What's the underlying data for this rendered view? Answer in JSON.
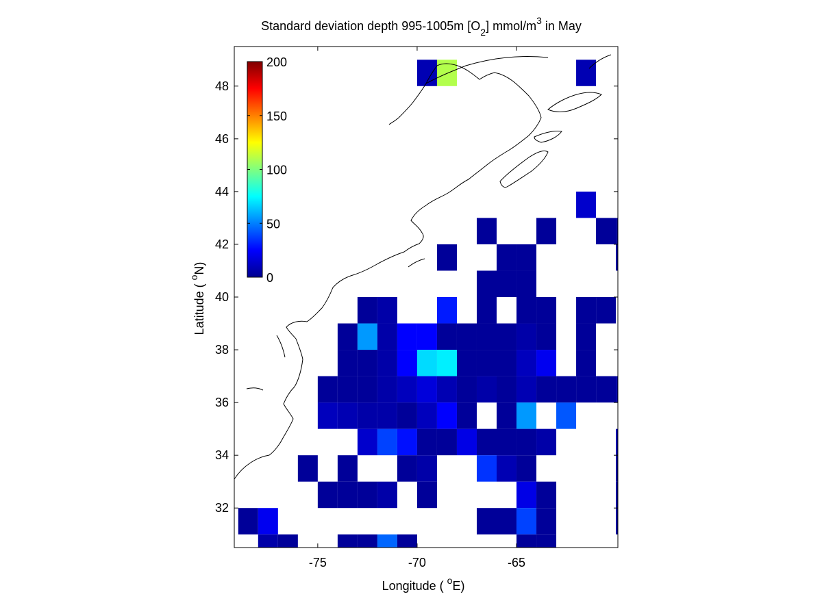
{
  "title": {
    "prefix": "Standard deviation depth 995-1005m [O",
    "sub": "2",
    "middle": "] mmol/m",
    "sup": "3",
    "suffix": " in May"
  },
  "xlabel": {
    "prefix": "Longitude ( ",
    "sup": "o",
    "suffix": "E)"
  },
  "ylabel": {
    "prefix": "Latitude ( ",
    "sup": "o",
    "suffix": "N)"
  },
  "colorbar": {
    "colormap": "jet",
    "min": 0,
    "max": 200,
    "ticks": [
      "0",
      "50",
      "100",
      "150",
      "200"
    ]
  },
  "chart_data": {
    "type": "heatmap",
    "xlim": [
      -79.2,
      -59.9
    ],
    "ylim": [
      30.5,
      49.5
    ],
    "xticks": [
      -75,
      -70,
      -65
    ],
    "xtick_labels": [
      "-75",
      "-70",
      "-65"
    ],
    "yticks": [
      32,
      34,
      36,
      38,
      40,
      42,
      44,
      46,
      48
    ],
    "ytick_labels": [
      "32",
      "34",
      "36",
      "38",
      "40",
      "42",
      "44",
      "46",
      "48"
    ],
    "cell_size_deg": 1,
    "colorbar_range": [
      0,
      200
    ],
    "cells": [
      [
        -70,
        48,
        10
      ],
      [
        -69,
        48,
        110
      ],
      [
        -62,
        48,
        10
      ],
      [
        -62,
        43,
        15
      ],
      [
        -67,
        42,
        5
      ],
      [
        -64,
        42,
        5
      ],
      [
        -61,
        42,
        5
      ],
      [
        -60,
        42,
        5
      ],
      [
        -69,
        41,
        5
      ],
      [
        -66,
        41,
        5
      ],
      [
        -65,
        41,
        5
      ],
      [
        -60,
        41,
        5
      ],
      [
        -67,
        40,
        5
      ],
      [
        -66,
        40,
        5
      ],
      [
        -65,
        40,
        5
      ],
      [
        -73,
        39,
        5
      ],
      [
        -72,
        39,
        8
      ],
      [
        -69,
        39,
        30
      ],
      [
        -67,
        39,
        5
      ],
      [
        -65,
        39,
        5
      ],
      [
        -64,
        39,
        5
      ],
      [
        -62,
        39,
        5
      ],
      [
        -61,
        39,
        5
      ],
      [
        -74,
        38,
        5
      ],
      [
        -73,
        38,
        55
      ],
      [
        -72,
        38,
        8
      ],
      [
        -71,
        38,
        25
      ],
      [
        -70,
        38,
        25
      ],
      [
        -69,
        38,
        5
      ],
      [
        -68,
        38,
        5
      ],
      [
        -67,
        38,
        5
      ],
      [
        -66,
        38,
        5
      ],
      [
        -65,
        38,
        8
      ],
      [
        -64,
        38,
        5
      ],
      [
        -62,
        38,
        5
      ],
      [
        -74,
        37,
        5
      ],
      [
        -73,
        37,
        5
      ],
      [
        -72,
        37,
        8
      ],
      [
        -71,
        37,
        25
      ],
      [
        -70,
        37,
        68
      ],
      [
        -69,
        37,
        72
      ],
      [
        -68,
        37,
        5
      ],
      [
        -67,
        37,
        5
      ],
      [
        -66,
        37,
        5
      ],
      [
        -65,
        37,
        12
      ],
      [
        -64,
        37,
        22
      ],
      [
        -62,
        37,
        5
      ],
      [
        -75,
        36,
        5
      ],
      [
        -74,
        36,
        5
      ],
      [
        -73,
        36,
        5
      ],
      [
        -72,
        36,
        8
      ],
      [
        -71,
        36,
        12
      ],
      [
        -70,
        36,
        18
      ],
      [
        -69,
        36,
        10
      ],
      [
        -68,
        36,
        5
      ],
      [
        -67,
        36,
        8
      ],
      [
        -66,
        36,
        5
      ],
      [
        -65,
        36,
        10
      ],
      [
        -64,
        36,
        5
      ],
      [
        -63,
        36,
        5
      ],
      [
        -62,
        36,
        5
      ],
      [
        -61,
        36,
        5
      ],
      [
        -60,
        36,
        8
      ],
      [
        -75,
        35,
        12
      ],
      [
        -74,
        35,
        10
      ],
      [
        -73,
        35,
        8
      ],
      [
        -72,
        35,
        8
      ],
      [
        -71,
        35,
        5
      ],
      [
        -70,
        35,
        12
      ],
      [
        -69,
        35,
        25
      ],
      [
        -68,
        35,
        5
      ],
      [
        -66,
        35,
        5
      ],
      [
        -65,
        35,
        55
      ],
      [
        -63,
        35,
        42
      ],
      [
        -73,
        34,
        15
      ],
      [
        -72,
        34,
        38
      ],
      [
        -71,
        34,
        28
      ],
      [
        -70,
        34,
        5
      ],
      [
        -69,
        34,
        5
      ],
      [
        -68,
        34,
        20
      ],
      [
        -67,
        34,
        5
      ],
      [
        -66,
        34,
        5
      ],
      [
        -65,
        34,
        5
      ],
      [
        -64,
        34,
        8
      ],
      [
        -60,
        34,
        8
      ],
      [
        -76,
        33,
        5
      ],
      [
        -74,
        33,
        5
      ],
      [
        -71,
        33,
        5
      ],
      [
        -70,
        33,
        8
      ],
      [
        -67,
        33,
        35
      ],
      [
        -66,
        33,
        10
      ],
      [
        -65,
        33,
        5
      ],
      [
        -60,
        33,
        5
      ],
      [
        -75,
        32,
        5
      ],
      [
        -74,
        32,
        5
      ],
      [
        -73,
        32,
        5
      ],
      [
        -72,
        32,
        8
      ],
      [
        -70,
        32,
        5
      ],
      [
        -65,
        32,
        20
      ],
      [
        -64,
        32,
        5
      ],
      [
        -60,
        32,
        5
      ],
      [
        -79,
        31,
        5
      ],
      [
        -78,
        31,
        22
      ],
      [
        -67,
        31,
        5
      ],
      [
        -66,
        31,
        5
      ],
      [
        -65,
        31,
        38
      ],
      [
        -64,
        31,
        5
      ],
      [
        -60,
        31,
        5
      ],
      [
        -78,
        30,
        8
      ],
      [
        -77,
        30,
        5
      ],
      [
        -74,
        30,
        5
      ],
      [
        -73,
        30,
        5
      ],
      [
        -72,
        30,
        45
      ],
      [
        -71,
        30,
        5
      ],
      [
        -65,
        30,
        5
      ],
      [
        -64,
        30,
        5
      ]
    ]
  }
}
